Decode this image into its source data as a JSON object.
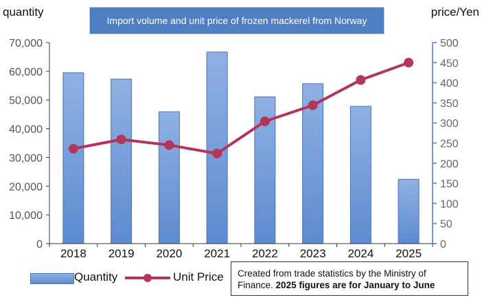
{
  "chart_data": {
    "type": "bar",
    "title": "Import volume and unit price of frozen mackerel from Norway",
    "categories": [
      "2018",
      "2019",
      "2020",
      "2021",
      "2022",
      "2023",
      "2024",
      "2025"
    ],
    "series": [
      {
        "name": "Quantity",
        "type": "bar",
        "axis": "left",
        "values": [
          59500,
          57300,
          45900,
          66700,
          51100,
          55700,
          47800,
          22400
        ]
      },
      {
        "name": "Unit Price",
        "type": "line",
        "axis": "right",
        "values": [
          236,
          259,
          245,
          224,
          304,
          344,
          407,
          450
        ]
      }
    ],
    "y_left": {
      "label": "quantity",
      "lim": [
        0,
        70000
      ],
      "ticks": [
        "0",
        "10,000",
        "20,000",
        "30,000",
        "40,000",
        "50,000",
        "60,000",
        "70,000"
      ]
    },
    "y_right": {
      "label": "price/Yen",
      "lim": [
        0,
        500
      ],
      "ticks": [
        "0",
        "50",
        "100",
        "150",
        "200",
        "250",
        "300",
        "350",
        "400",
        "450",
        "500"
      ]
    },
    "legend_position": "bottom-left",
    "note": {
      "text": "Created from trade statistics by the Ministry of Finance.",
      "bold": "2025 figures are for January to June"
    }
  },
  "colors": {
    "bar_fill_top": "#8fb1e2",
    "bar_fill_bottom": "#5d8bd0",
    "bar_stroke": "#4a74b6",
    "line": "#b5345a",
    "marker": "#b5345a",
    "axis": "#333333",
    "right_axis": "#6f96d6",
    "title_bg": "#4f7ec2"
  }
}
